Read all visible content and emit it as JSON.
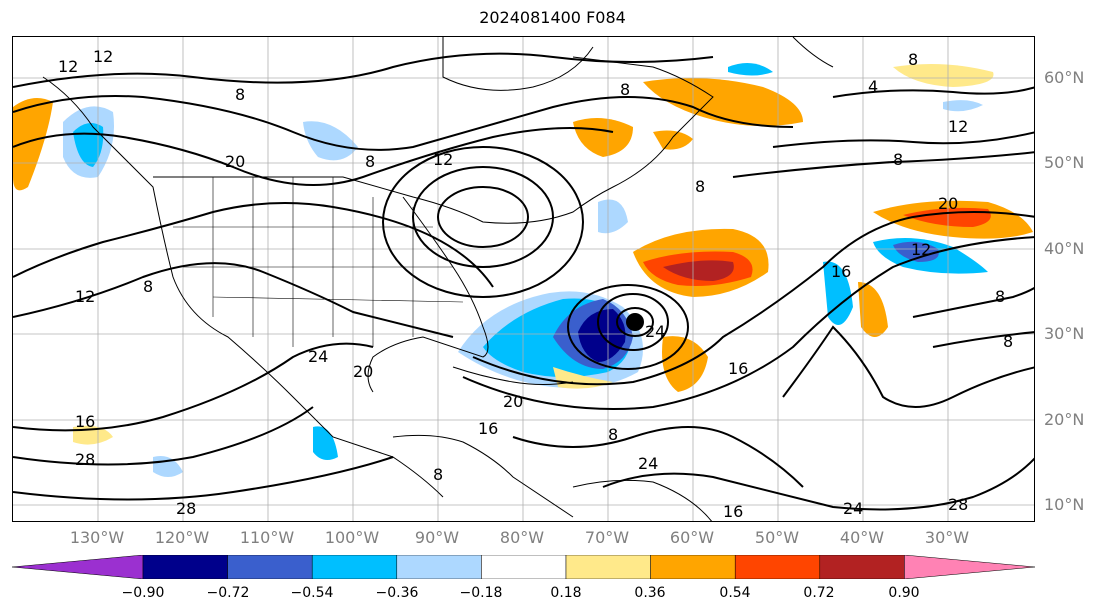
{
  "title": "2024081400 F084",
  "lat_labels": [
    "60°N",
    "50°N",
    "40°N",
    "30°N",
    "20°N",
    "10°N"
  ],
  "lon_labels": [
    "130°W",
    "120°W",
    "110°W",
    "100°W",
    "90°W",
    "80°W",
    "70°W",
    "60°W",
    "50°W",
    "40°W",
    "30°W"
  ],
  "contour_labels": [
    "12",
    "12",
    "8",
    "8",
    "20",
    "8",
    "12",
    "8",
    "4",
    "8",
    "12",
    "8",
    "20",
    "12",
    "20",
    "24",
    "12",
    "8",
    "24",
    "8",
    "16",
    "28",
    "16",
    "20",
    "16",
    "24",
    "28",
    "24",
    "28",
    "8",
    "8",
    "8",
    "16",
    "16"
  ],
  "colorbar": {
    "ticks": [
      "−0.90",
      "−0.72",
      "−0.54",
      "−0.36",
      "−0.18",
      "0.18",
      "0.36",
      "0.54",
      "0.72",
      "0.90"
    ],
    "colors": [
      "#9b30d0",
      "#00008b",
      "#3a5fcd",
      "#00bfff",
      "#add8ff",
      "#ffffff",
      "#ffe98a",
      "#ffa500",
      "#ff4500",
      "#b22222",
      "#ff82b4"
    ]
  },
  "cyclone_center": "filled-dot"
}
